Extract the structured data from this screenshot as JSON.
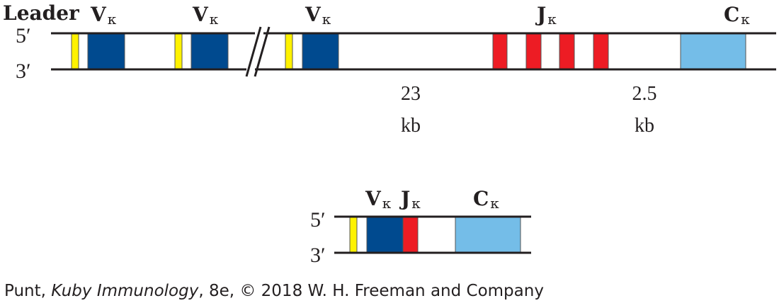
{
  "colors": {
    "leader": "#fff200",
    "v_segment": "#004a8f",
    "j_segment": "#ed1c24",
    "c_segment": "#74bde8",
    "strand": "#231f20"
  },
  "germline": {
    "leader_label": "Leader",
    "five_prime": "5′",
    "three_prime": "3′",
    "v_labels": [
      {
        "main": "V",
        "sub": "κ"
      },
      {
        "main": "V",
        "sub": "κ"
      },
      {
        "main": "V",
        "sub": "κ"
      }
    ],
    "j_label": {
      "main": "J",
      "sub": "κ"
    },
    "c_label": {
      "main": "C",
      "sub": "κ"
    },
    "distance_1": {
      "value": "23",
      "unit": "kb"
    },
    "distance_2": {
      "value": "2.5",
      "unit": "kb"
    }
  },
  "rearranged": {
    "five_prime": "5′",
    "three_prime": "3′",
    "v_label": {
      "main": "V",
      "sub": "κ"
    },
    "j_label": {
      "main": "J",
      "sub": "κ"
    },
    "c_label": {
      "main": "C",
      "sub": "κ"
    }
  },
  "credit": {
    "author": "Punt, ",
    "title": "Kuby Immunology",
    "rest": ", 8e, © 2018 W. H. Freeman and Company"
  }
}
